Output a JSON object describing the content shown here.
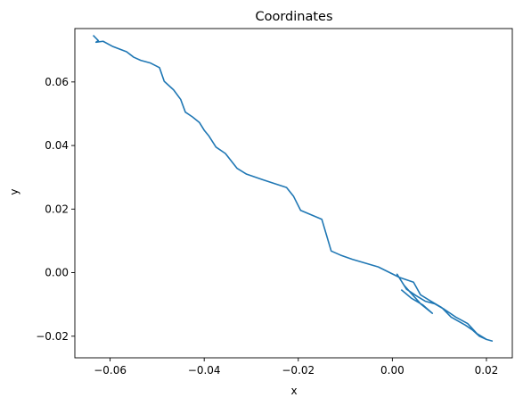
{
  "chart_data": {
    "type": "line",
    "title": "Coordinates",
    "xlabel": "x",
    "ylabel": "y",
    "xlim": [
      -0.0675,
      0.0255
    ],
    "ylim": [
      -0.0268,
      0.0768
    ],
    "xticks": [
      -0.06,
      -0.04,
      -0.02,
      0.0,
      0.02
    ],
    "xtick_labels": [
      "−0.06",
      "−0.04",
      "−0.02",
      "0.00",
      "0.02"
    ],
    "yticks": [
      -0.02,
      0.0,
      0.02,
      0.04,
      0.06
    ],
    "ytick_labels": [
      "−0.02",
      "0.00",
      "0.02",
      "0.04",
      "0.06"
    ],
    "grid": false,
    "color": "#1f77b4",
    "series": [
      {
        "x": [
          -0.0635,
          -0.0625,
          -0.063,
          -0.0615,
          -0.0595,
          -0.0565,
          -0.055,
          -0.0535,
          -0.0515,
          -0.0495,
          -0.0485,
          -0.0465,
          -0.045,
          -0.044,
          -0.0425,
          -0.041,
          -0.04,
          -0.039,
          -0.0375,
          -0.0355,
          -0.033,
          -0.031,
          -0.0275,
          -0.0225,
          -0.021,
          -0.0195,
          -0.015,
          -0.013,
          -0.011,
          -0.0085,
          -0.003,
          0.0015,
          0.0045,
          0.006,
          0.008,
          0.0105,
          0.0125,
          0.0155,
          0.017,
          0.0185,
          0.02,
          0.0212,
          0.02,
          0.018,
          0.016,
          0.0135,
          0.011,
          0.009,
          0.007,
          0.005,
          0.003,
          0.001,
          0.0025,
          0.004,
          0.006,
          0.0085,
          0.0065,
          0.004,
          0.002
        ],
        "y": [
          0.0745,
          0.073,
          0.0725,
          0.0728,
          0.0712,
          0.0695,
          0.0678,
          0.0668,
          0.066,
          0.0645,
          0.0602,
          0.0575,
          0.0545,
          0.0505,
          0.049,
          0.0472,
          0.0448,
          0.043,
          0.0395,
          0.0375,
          0.0328,
          0.031,
          0.0292,
          0.0268,
          0.024,
          0.0196,
          0.0168,
          0.0068,
          0.0055,
          0.0042,
          0.0018,
          -0.0015,
          -0.003,
          -0.007,
          -0.0088,
          -0.011,
          -0.014,
          -0.0165,
          -0.018,
          -0.02,
          -0.021,
          -0.0215,
          -0.021,
          -0.0192,
          -0.016,
          -0.014,
          -0.0115,
          -0.0098,
          -0.009,
          -0.0072,
          -0.0052,
          -0.0005,
          -0.004,
          -0.0065,
          -0.0098,
          -0.0128,
          -0.0102,
          -0.008,
          -0.0055
        ]
      }
    ]
  }
}
